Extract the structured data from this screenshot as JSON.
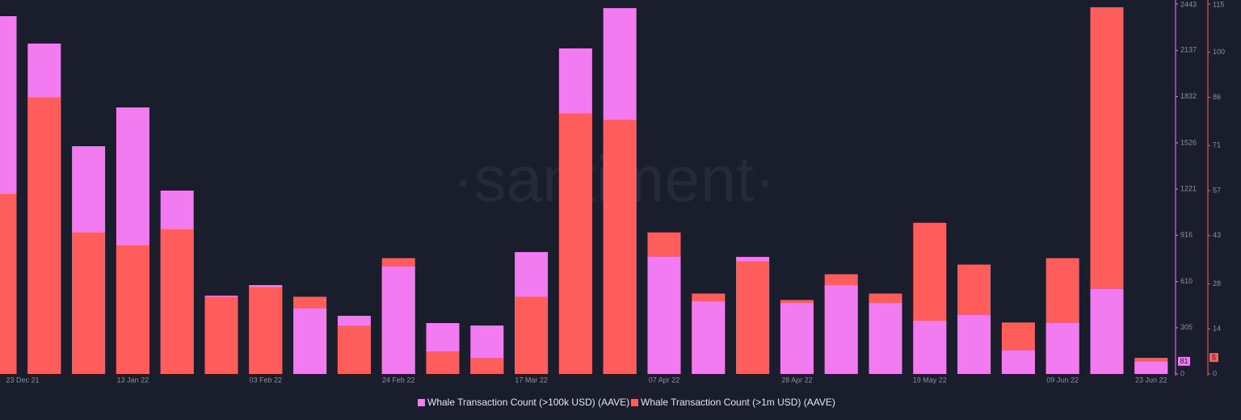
{
  "chart_data": {
    "type": "bar",
    "watermark": "·santiment·",
    "categories": [
      "23 Dec 21",
      null,
      null,
      "13 Jan 22",
      null,
      null,
      "03 Feb 22",
      null,
      null,
      "24 Feb 22",
      null,
      null,
      "17 Mar 22",
      null,
      null,
      "07 Apr 22",
      null,
      null,
      "28 Apr 22",
      null,
      null,
      "19 May 22",
      null,
      null,
      "09 Jun 22",
      null,
      "23 Jun 22"
    ],
    "series": [
      {
        "name": "Whale Transaction Count (>100k USD) (AAVE)",
        "color": "#f27bf2",
        "axis": "y",
        "values": [
          2363,
          2182,
          1504,
          1760,
          1211,
          517,
          587,
          432,
          384,
          709,
          336,
          320,
          805,
          2150,
          2416,
          773,
          480,
          773,
          469,
          587,
          469,
          352,
          389,
          155,
          336,
          560,
          81
        ]
      },
      {
        "name": "Whale Transaction Count (>1m USD) (AAVE)",
        "color": "#ff5c5c",
        "axis": "y2",
        "values": [
          56,
          86,
          44,
          40,
          45,
          24,
          27,
          24,
          15,
          36,
          7,
          5,
          24,
          81,
          79,
          44,
          25,
          35,
          23,
          31,
          25,
          47,
          34,
          16,
          36,
          114,
          5
        ]
      }
    ],
    "ylim": [
      0,
      2443
    ],
    "yticks": [
      0,
      305,
      610,
      916,
      1221,
      1526,
      1832,
      2137,
      2443
    ],
    "y2lim": [
      0,
      115
    ],
    "y2ticks": [
      0,
      14,
      28,
      43,
      57,
      71,
      86,
      100,
      115
    ]
  }
}
